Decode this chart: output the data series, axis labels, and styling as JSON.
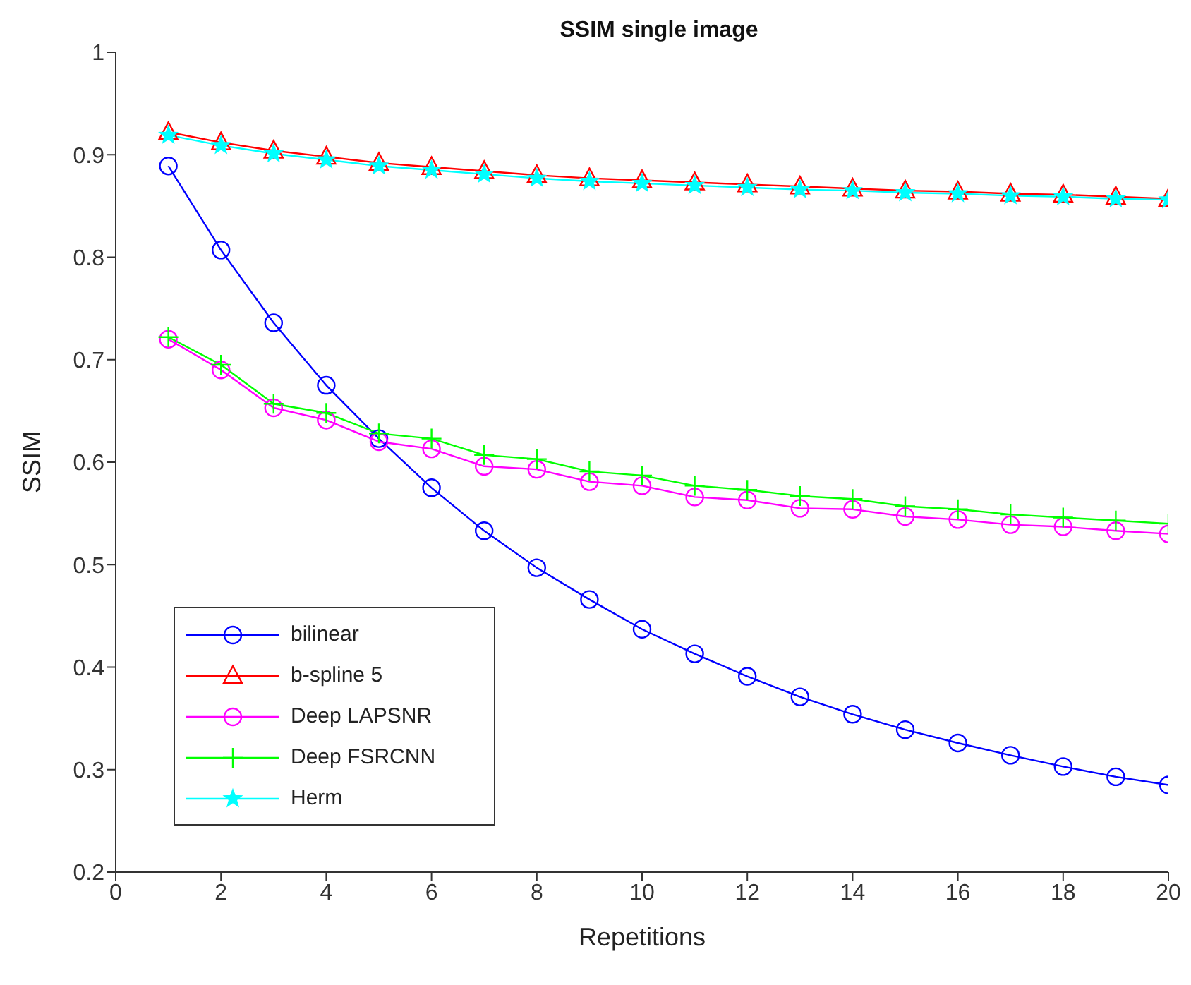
{
  "chart_data": {
    "type": "line",
    "title": "SSIM single image",
    "xlabel": "Repetitions",
    "ylabel": "SSIM",
    "x": [
      1,
      2,
      3,
      4,
      5,
      6,
      7,
      8,
      9,
      10,
      11,
      12,
      13,
      14,
      15,
      16,
      17,
      18,
      19,
      20
    ],
    "xlim": [
      0,
      20
    ],
    "xticks": [
      0,
      2,
      4,
      6,
      8,
      10,
      12,
      14,
      16,
      18,
      20
    ],
    "ylim": [
      0.2,
      1
    ],
    "yticks": [
      0.2,
      0.3,
      0.4,
      0.5,
      0.6,
      0.7,
      0.8,
      0.9,
      1
    ],
    "grid": false,
    "legend": "bottom left",
    "series": [
      {
        "name": "bilinear",
        "color": "#0000ff",
        "marker": "circle",
        "values": [
          0.889,
          0.807,
          0.736,
          0.675,
          0.623,
          0.575,
          0.533,
          0.497,
          0.466,
          0.437,
          0.413,
          0.391,
          0.371,
          0.354,
          0.339,
          0.326,
          0.314,
          0.303,
          0.293,
          0.285
        ]
      },
      {
        "name": "b-spline 5",
        "color": "#ff0000",
        "marker": "triangle",
        "values": [
          0.922,
          0.912,
          0.904,
          0.898,
          0.892,
          0.888,
          0.884,
          0.88,
          0.877,
          0.875,
          0.873,
          0.871,
          0.869,
          0.867,
          0.865,
          0.864,
          0.862,
          0.861,
          0.859,
          0.857
        ]
      },
      {
        "name": "Deep LAPSNR",
        "color": "#ff00ff",
        "marker": "circle",
        "values": [
          0.72,
          0.69,
          0.653,
          0.641,
          0.62,
          0.613,
          0.596,
          0.593,
          0.581,
          0.577,
          0.566,
          0.563,
          0.555,
          0.554,
          0.547,
          0.544,
          0.539,
          0.537,
          0.533,
          0.53
        ]
      },
      {
        "name": "Deep FSRCNN",
        "color": "#00ff00",
        "marker": "cross",
        "values": [
          0.722,
          0.695,
          0.657,
          0.648,
          0.628,
          0.623,
          0.607,
          0.603,
          0.591,
          0.587,
          0.577,
          0.573,
          0.567,
          0.564,
          0.557,
          0.554,
          0.549,
          0.546,
          0.543,
          0.54
        ]
      },
      {
        "name": "Herm",
        "color": "#00ffff",
        "marker": "star",
        "values": [
          0.919,
          0.909,
          0.901,
          0.895,
          0.889,
          0.885,
          0.881,
          0.877,
          0.874,
          0.872,
          0.87,
          0.868,
          0.866,
          0.865,
          0.863,
          0.862,
          0.86,
          0.859,
          0.857,
          0.856
        ]
      }
    ]
  }
}
